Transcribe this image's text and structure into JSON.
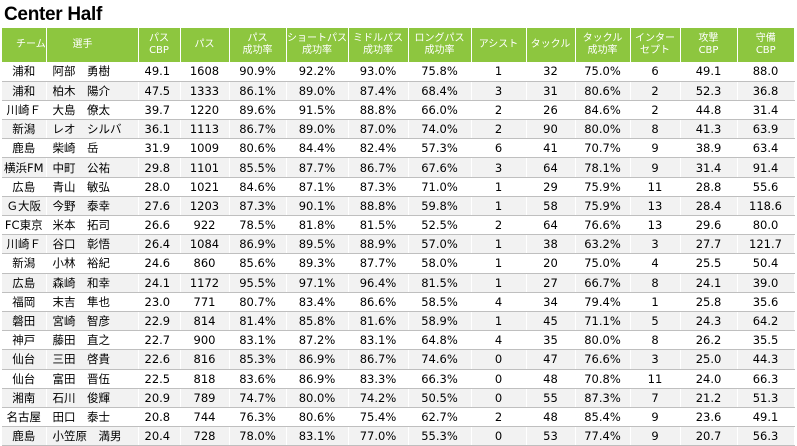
{
  "title": "Center Half",
  "headers": [
    {
      "line1": "チーム",
      "line2": ""
    },
    {
      "line1": "選手",
      "line2": ""
    },
    {
      "line1": "パス",
      "line2": "CBP"
    },
    {
      "line1": "パス",
      "line2": ""
    },
    {
      "line1": "パス",
      "line2": "成功率"
    },
    {
      "line1": "ショートパス",
      "line2": "成功率"
    },
    {
      "line1": "ミドルパス",
      "line2": "成功率"
    },
    {
      "line1": "ロングパス",
      "line2": "成功率"
    },
    {
      "line1": "アシスト",
      "line2": ""
    },
    {
      "line1": "タックル",
      "line2": ""
    },
    {
      "line1": "タックル",
      "line2": "成功率"
    },
    {
      "line1": "インター",
      "line2": "セプト"
    },
    {
      "line1": "攻撃",
      "line2": "CBP"
    },
    {
      "line1": "守備",
      "line2": "CBP"
    }
  ],
  "rows": [
    [
      "浦和",
      "阿部　勇樹",
      "49.1",
      "1608",
      "90.9%",
      "92.2%",
      "93.0%",
      "75.8%",
      "1",
      "32",
      "75.0%",
      "6",
      "49.1",
      "88.0"
    ],
    [
      "浦和",
      "柏木　陽介",
      "47.5",
      "1333",
      "86.1%",
      "89.0%",
      "87.4%",
      "68.4%",
      "3",
      "31",
      "80.6%",
      "2",
      "52.3",
      "36.8"
    ],
    [
      "川崎Ｆ",
      "大島　僚太",
      "39.7",
      "1220",
      "89.6%",
      "91.5%",
      "88.8%",
      "66.0%",
      "2",
      "26",
      "84.6%",
      "2",
      "44.8",
      "31.4"
    ],
    [
      "新潟",
      "レオ　シルバ",
      "36.1",
      "1113",
      "86.7%",
      "89.0%",
      "87.0%",
      "74.0%",
      "2",
      "90",
      "80.0%",
      "8",
      "41.3",
      "63.9"
    ],
    [
      "鹿島",
      "柴崎　岳",
      "31.9",
      "1009",
      "80.6%",
      "84.4%",
      "82.4%",
      "57.3%",
      "6",
      "41",
      "70.7%",
      "9",
      "38.9",
      "63.4"
    ],
    [
      "横浜FM",
      "中町　公祐",
      "29.8",
      "1101",
      "85.5%",
      "87.7%",
      "86.7%",
      "67.6%",
      "3",
      "64",
      "78.1%",
      "9",
      "31.4",
      "91.4"
    ],
    [
      "広島",
      "青山　敏弘",
      "28.0",
      "1021",
      "84.6%",
      "87.1%",
      "87.3%",
      "71.0%",
      "1",
      "29",
      "75.9%",
      "11",
      "28.8",
      "55.6"
    ],
    [
      "Ｇ大阪",
      "今野　泰幸",
      "27.6",
      "1203",
      "87.3%",
      "90.1%",
      "88.8%",
      "59.8%",
      "1",
      "58",
      "75.9%",
      "13",
      "28.4",
      "118.6"
    ],
    [
      "FC東京",
      "米本　拓司",
      "26.6",
      "922",
      "78.5%",
      "81.8%",
      "81.5%",
      "52.5%",
      "2",
      "64",
      "76.6%",
      "13",
      "29.6",
      "80.0"
    ],
    [
      "川崎Ｆ",
      "谷口　彰悟",
      "26.4",
      "1084",
      "86.9%",
      "89.5%",
      "88.9%",
      "57.0%",
      "1",
      "38",
      "63.2%",
      "3",
      "27.7",
      "121.7"
    ],
    [
      "新潟",
      "小林　裕紀",
      "24.6",
      "860",
      "85.6%",
      "89.3%",
      "87.7%",
      "58.0%",
      "1",
      "20",
      "75.0%",
      "4",
      "25.5",
      "50.4"
    ],
    [
      "広島",
      "森崎　和幸",
      "24.1",
      "1172",
      "95.5%",
      "97.1%",
      "96.4%",
      "81.5%",
      "1",
      "27",
      "66.7%",
      "8",
      "24.1",
      "39.0"
    ],
    [
      "福岡",
      "末吉　隼也",
      "23.0",
      "771",
      "80.7%",
      "83.4%",
      "86.6%",
      "58.5%",
      "4",
      "34",
      "79.4%",
      "1",
      "25.8",
      "35.6"
    ],
    [
      "磐田",
      "宮崎　智彦",
      "22.9",
      "814",
      "81.4%",
      "85.8%",
      "81.6%",
      "58.9%",
      "1",
      "45",
      "71.1%",
      "5",
      "24.3",
      "64.2"
    ],
    [
      "神戸",
      "藤田　直之",
      "22.7",
      "900",
      "83.1%",
      "87.2%",
      "83.1%",
      "64.8%",
      "4",
      "35",
      "80.0%",
      "8",
      "26.2",
      "35.5"
    ],
    [
      "仙台",
      "三田　啓貴",
      "22.6",
      "816",
      "85.3%",
      "86.9%",
      "86.7%",
      "74.6%",
      "0",
      "47",
      "76.6%",
      "3",
      "25.0",
      "44.3"
    ],
    [
      "仙台",
      "富田　晋伍",
      "22.5",
      "818",
      "83.6%",
      "86.9%",
      "83.3%",
      "66.3%",
      "0",
      "48",
      "70.8%",
      "11",
      "24.0",
      "66.3"
    ],
    [
      "湘南",
      "石川　俊輝",
      "20.9",
      "789",
      "74.7%",
      "80.0%",
      "74.2%",
      "50.5%",
      "0",
      "55",
      "87.3%",
      "7",
      "21.2",
      "51.3"
    ],
    [
      "名古屋",
      "田口　泰士",
      "20.8",
      "744",
      "76.3%",
      "80.6%",
      "75.4%",
      "62.7%",
      "2",
      "48",
      "85.4%",
      "9",
      "23.6",
      "49.1"
    ],
    [
      "鹿島",
      "小笠原　満男",
      "20.4",
      "728",
      "78.0%",
      "83.1%",
      "77.0%",
      "55.3%",
      "0",
      "53",
      "77.4%",
      "9",
      "20.7",
      "56.3"
    ]
  ]
}
